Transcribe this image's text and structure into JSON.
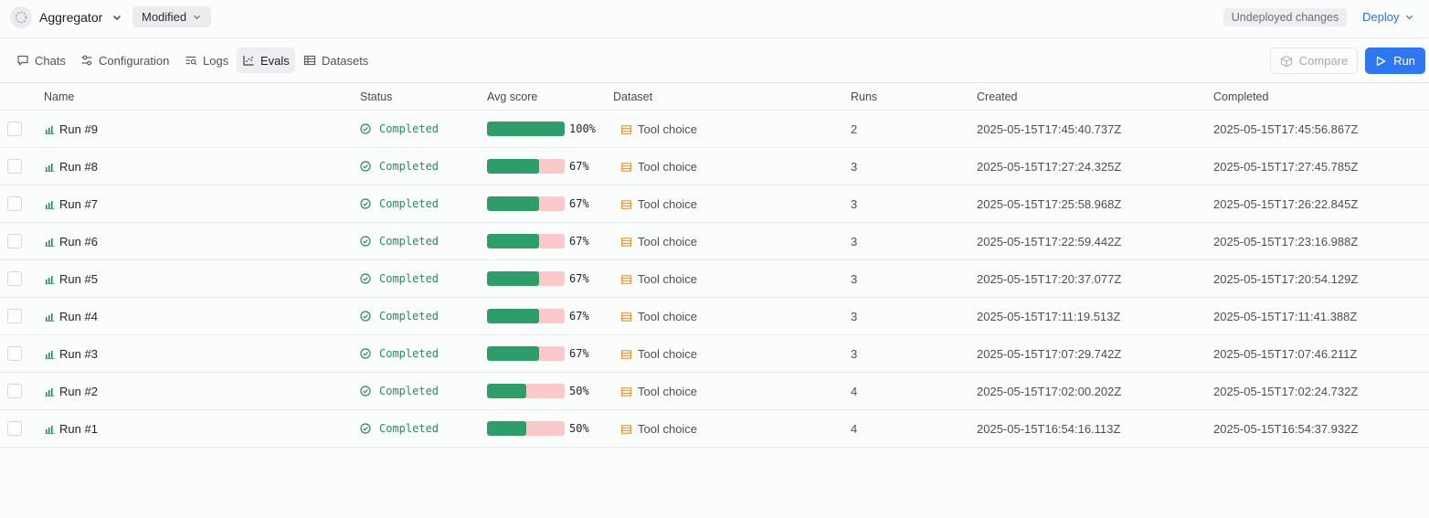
{
  "header": {
    "app_name": "Aggregator",
    "version_status": "Modified",
    "undeployed_label": "Undeployed changes",
    "deploy_label": "Deploy"
  },
  "tabs": [
    {
      "label": "Chats",
      "icon": "chat-icon",
      "active": false
    },
    {
      "label": "Configuration",
      "icon": "sliders-icon",
      "active": false
    },
    {
      "label": "Logs",
      "icon": "logs-icon",
      "active": false
    },
    {
      "label": "Evals",
      "icon": "chart-icon",
      "active": true
    },
    {
      "label": "Datasets",
      "icon": "table-icon",
      "active": false
    }
  ],
  "actions": {
    "compare_label": "Compare",
    "run_label": "Run"
  },
  "columns": [
    "Name",
    "Status",
    "Avg score",
    "Dataset",
    "Runs",
    "Created",
    "Completed"
  ],
  "colors": {
    "accent": "#2f77f0",
    "score_fill": "#2d9e6a",
    "score_track": "#fbc9c9",
    "status_completed": "#2a8a5a",
    "dataset_icon": "#e0912f"
  },
  "rows": [
    {
      "name": "Run #9",
      "status": "Completed",
      "score": 1.0,
      "score_label": "100%",
      "dataset": "Tool choice",
      "runs": "2",
      "created": "2025-05-15T17:45:40.737Z",
      "completed": "2025-05-15T17:45:56.867Z"
    },
    {
      "name": "Run #8",
      "status": "Completed",
      "score": 0.67,
      "score_label": "67%",
      "dataset": "Tool choice",
      "runs": "3",
      "created": "2025-05-15T17:27:24.325Z",
      "completed": "2025-05-15T17:27:45.785Z"
    },
    {
      "name": "Run #7",
      "status": "Completed",
      "score": 0.67,
      "score_label": "67%",
      "dataset": "Tool choice",
      "runs": "3",
      "created": "2025-05-15T17:25:58.968Z",
      "completed": "2025-05-15T17:26:22.845Z"
    },
    {
      "name": "Run #6",
      "status": "Completed",
      "score": 0.67,
      "score_label": "67%",
      "dataset": "Tool choice",
      "runs": "3",
      "created": "2025-05-15T17:22:59.442Z",
      "completed": "2025-05-15T17:23:16.988Z"
    },
    {
      "name": "Run #5",
      "status": "Completed",
      "score": 0.67,
      "score_label": "67%",
      "dataset": "Tool choice",
      "runs": "3",
      "created": "2025-05-15T17:20:37.077Z",
      "completed": "2025-05-15T17:20:54.129Z"
    },
    {
      "name": "Run #4",
      "status": "Completed",
      "score": 0.67,
      "score_label": "67%",
      "dataset": "Tool choice",
      "runs": "3",
      "created": "2025-05-15T17:11:19.513Z",
      "completed": "2025-05-15T17:11:41.388Z"
    },
    {
      "name": "Run #3",
      "status": "Completed",
      "score": 0.67,
      "score_label": "67%",
      "dataset": "Tool choice",
      "runs": "3",
      "created": "2025-05-15T17:07:29.742Z",
      "completed": "2025-05-15T17:07:46.211Z"
    },
    {
      "name": "Run #2",
      "status": "Completed",
      "score": 0.5,
      "score_label": "50%",
      "dataset": "Tool choice",
      "runs": "4",
      "created": "2025-05-15T17:02:00.202Z",
      "completed": "2025-05-15T17:02:24.732Z"
    },
    {
      "name": "Run #1",
      "status": "Completed",
      "score": 0.5,
      "score_label": "50%",
      "dataset": "Tool choice",
      "runs": "4",
      "created": "2025-05-15T16:54:16.113Z",
      "completed": "2025-05-15T16:54:37.932Z"
    }
  ]
}
